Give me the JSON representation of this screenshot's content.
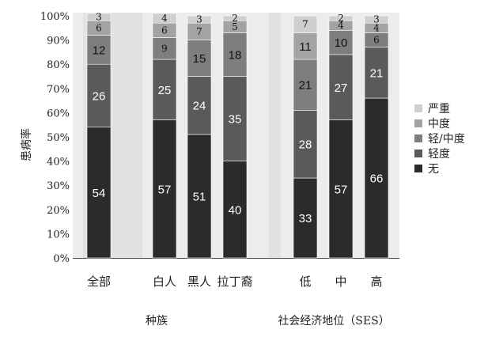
{
  "chart_data": {
    "type": "bar",
    "stacked": true,
    "ylabel": "患病率",
    "ylim": [
      0,
      100
    ],
    "yticks": [
      "0%",
      "10%",
      "20%",
      "30%",
      "40%",
      "50%",
      "60%",
      "70%",
      "80%",
      "90%",
      "100%"
    ],
    "categories": [
      "全部",
      "白人",
      "黑人",
      "拉丁裔",
      "低",
      "中",
      "高"
    ],
    "groups": [
      {
        "label": "种族",
        "categories": [
          "白人",
          "黑人",
          "拉丁裔"
        ]
      },
      {
        "label": "社会经济地位（SES）",
        "categories": [
          "低",
          "中",
          "高"
        ]
      }
    ],
    "series": [
      {
        "name": "无",
        "color": "#2b2b2b",
        "values": [
          54,
          57,
          51,
          40,
          33,
          57,
          66
        ]
      },
      {
        "name": "轻度",
        "color": "#5a5a5a",
        "values": [
          26,
          25,
          24,
          35,
          28,
          27,
          21
        ]
      },
      {
        "name": "轻/中度",
        "color": "#7e7e7e",
        "values": [
          12,
          9,
          15,
          18,
          21,
          10,
          6
        ]
      },
      {
        "name": "中度",
        "color": "#a3a3a3",
        "values": [
          6,
          6,
          7,
          5,
          11,
          4,
          4
        ]
      },
      {
        "name": "严重",
        "color": "#cfcfcf",
        "values": [
          3,
          4,
          3,
          2,
          7,
          2,
          3
        ]
      }
    ],
    "segment_labels": [
      [
        "54",
        "26",
        "12",
        "6",
        "3"
      ],
      [
        "57",
        "25",
        "9",
        "6",
        "4"
      ],
      [
        "51",
        "24",
        "15",
        "7",
        "3"
      ],
      [
        "40",
        "35",
        "18",
        "5",
        "2"
      ],
      [
        "33",
        "28",
        "21",
        "11",
        "7"
      ],
      [
        "57",
        "27",
        "10",
        "4",
        "2"
      ],
      [
        "66",
        "21",
        "6",
        "4",
        "3"
      ]
    ],
    "legend": {
      "position": "right",
      "order": [
        "严重",
        "中度",
        "轻/中度",
        "轻度",
        "无"
      ]
    }
  }
}
